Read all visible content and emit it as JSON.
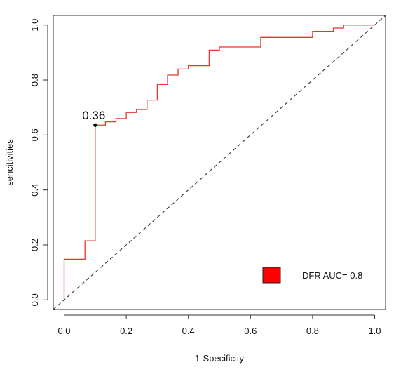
{
  "chart_data": {
    "type": "line",
    "title": "",
    "xlabel": "1-Specificity",
    "ylabel": "sencitivities",
    "xlim": [
      -0.035,
      1.035
    ],
    "ylim": [
      -0.035,
      1.035
    ],
    "x_ticks": [
      0.0,
      0.2,
      0.4,
      0.6,
      0.8,
      1.0
    ],
    "y_ticks": [
      0.0,
      0.2,
      0.4,
      0.6,
      0.8,
      1.0
    ],
    "x_tick_labels": [
      "0.0",
      "0.2",
      "0.4",
      "0.6",
      "0.8",
      "1.0"
    ],
    "y_tick_labels": [
      "0.0",
      "0.2",
      "0.4",
      "0.6",
      "0.8",
      "1.0"
    ],
    "grid": false,
    "series": [
      {
        "name": "DFR AUC= 0.8",
        "color": "#e8352e",
        "style": "step",
        "points": [
          [
            0.0,
            0.0
          ],
          [
            0.0,
            0.148
          ],
          [
            0.067,
            0.148
          ],
          [
            0.067,
            0.215
          ],
          [
            0.1,
            0.215
          ],
          [
            0.1,
            0.636
          ],
          [
            0.133,
            0.636
          ],
          [
            0.133,
            0.648
          ],
          [
            0.167,
            0.648
          ],
          [
            0.167,
            0.66
          ],
          [
            0.2,
            0.66
          ],
          [
            0.2,
            0.682
          ],
          [
            0.233,
            0.682
          ],
          [
            0.233,
            0.693
          ],
          [
            0.267,
            0.693
          ],
          [
            0.267,
            0.727
          ],
          [
            0.3,
            0.727
          ],
          [
            0.3,
            0.784
          ],
          [
            0.333,
            0.784
          ],
          [
            0.333,
            0.818
          ],
          [
            0.367,
            0.818
          ],
          [
            0.367,
            0.84
          ],
          [
            0.4,
            0.84
          ],
          [
            0.4,
            0.852
          ],
          [
            0.467,
            0.852
          ],
          [
            0.467,
            0.909
          ],
          [
            0.5,
            0.909
          ],
          [
            0.5,
            0.92
          ],
          [
            0.633,
            0.92
          ],
          [
            0.633,
            0.955
          ],
          [
            0.8,
            0.955
          ],
          [
            0.8,
            0.977
          ],
          [
            0.867,
            0.977
          ],
          [
            0.867,
            0.989
          ],
          [
            0.9,
            0.989
          ],
          [
            0.9,
            1.0
          ],
          [
            1.0,
            1.0
          ]
        ]
      }
    ],
    "reference_line": {
      "from": [
        0.0,
        0.0
      ],
      "to": [
        1.0,
        1.0
      ],
      "color": "#444444",
      "style": "dashed"
    },
    "annotations": [
      {
        "text": "0.36",
        "x": 0.1,
        "y": 0.636,
        "marker": "point"
      }
    ],
    "legend": {
      "placement": "bottom-right",
      "label": "DFR AUC= 0.8",
      "swatch_color": "#ff0000"
    }
  }
}
